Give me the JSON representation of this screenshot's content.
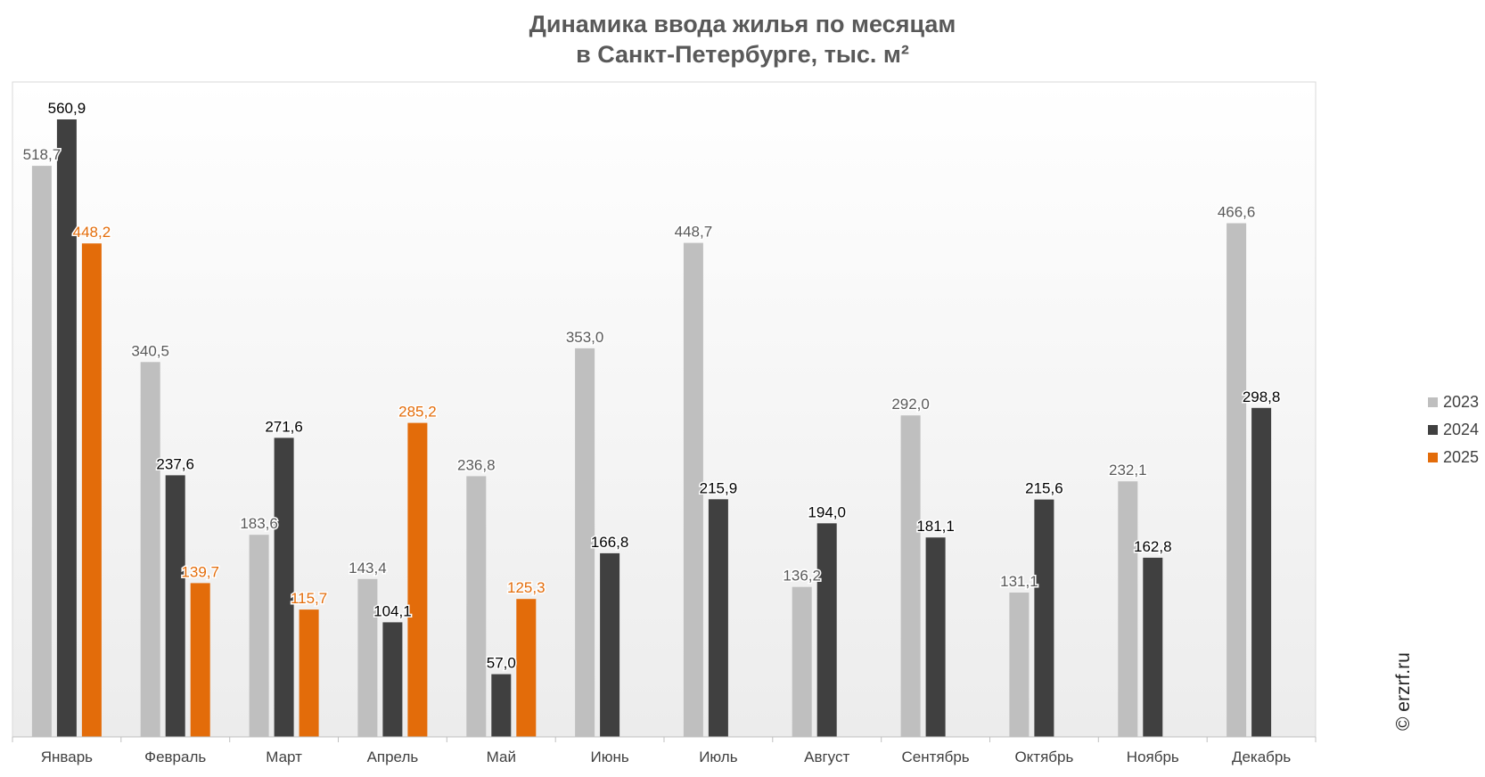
{
  "chart_data": {
    "type": "bar",
    "title_lines": [
      "Динамика ввода жилья по месяцам",
      "в Санкт-Петербурге, тыс. м²"
    ],
    "categories": [
      "Январь",
      "Февраль",
      "Март",
      "Апрель",
      "Май",
      "Июнь",
      "Июль",
      "Август",
      "Сентябрь",
      "Октябрь",
      "Ноябрь",
      "Декабрь"
    ],
    "series": [
      {
        "name": "2023",
        "color": "#bfbfbf",
        "label_color": "#595959",
        "values": [
          518.7,
          340.5,
          183.6,
          143.4,
          236.8,
          353.0,
          448.7,
          136.2,
          292.0,
          131.1,
          232.1,
          466.6
        ],
        "labels": [
          "518,7",
          "340,5",
          "183,6",
          "143,4",
          "236,8",
          "353,0",
          "448,7",
          "136,2",
          "292,0",
          "131,1",
          "232,1",
          "466,6"
        ]
      },
      {
        "name": "2024",
        "color": "#404040",
        "label_color": "#000000",
        "values": [
          560.9,
          237.6,
          271.6,
          104.1,
          57.0,
          166.8,
          215.9,
          194.0,
          181.1,
          215.6,
          162.8,
          298.8
        ],
        "labels": [
          "560,9",
          "237,6",
          "271,6",
          "104,1",
          "57,0",
          "166,8",
          "215,9",
          "194,0",
          "181,1",
          "215,6",
          "162,8",
          "298,8"
        ]
      },
      {
        "name": "2025",
        "color": "#e36c0a",
        "label_color": "#e36c0a",
        "values": [
          448.2,
          139.7,
          115.7,
          285.2,
          125.3,
          null,
          null,
          null,
          null,
          null,
          null,
          null
        ],
        "labels": [
          "448,2",
          "139,7",
          "115,7",
          "285,2",
          "125,3",
          null,
          null,
          null,
          null,
          null,
          null,
          null
        ]
      }
    ],
    "ylim": [
      0,
      600
    ],
    "grid": false,
    "legend_position": "right"
  },
  "watermark": "© erzrf.ru"
}
